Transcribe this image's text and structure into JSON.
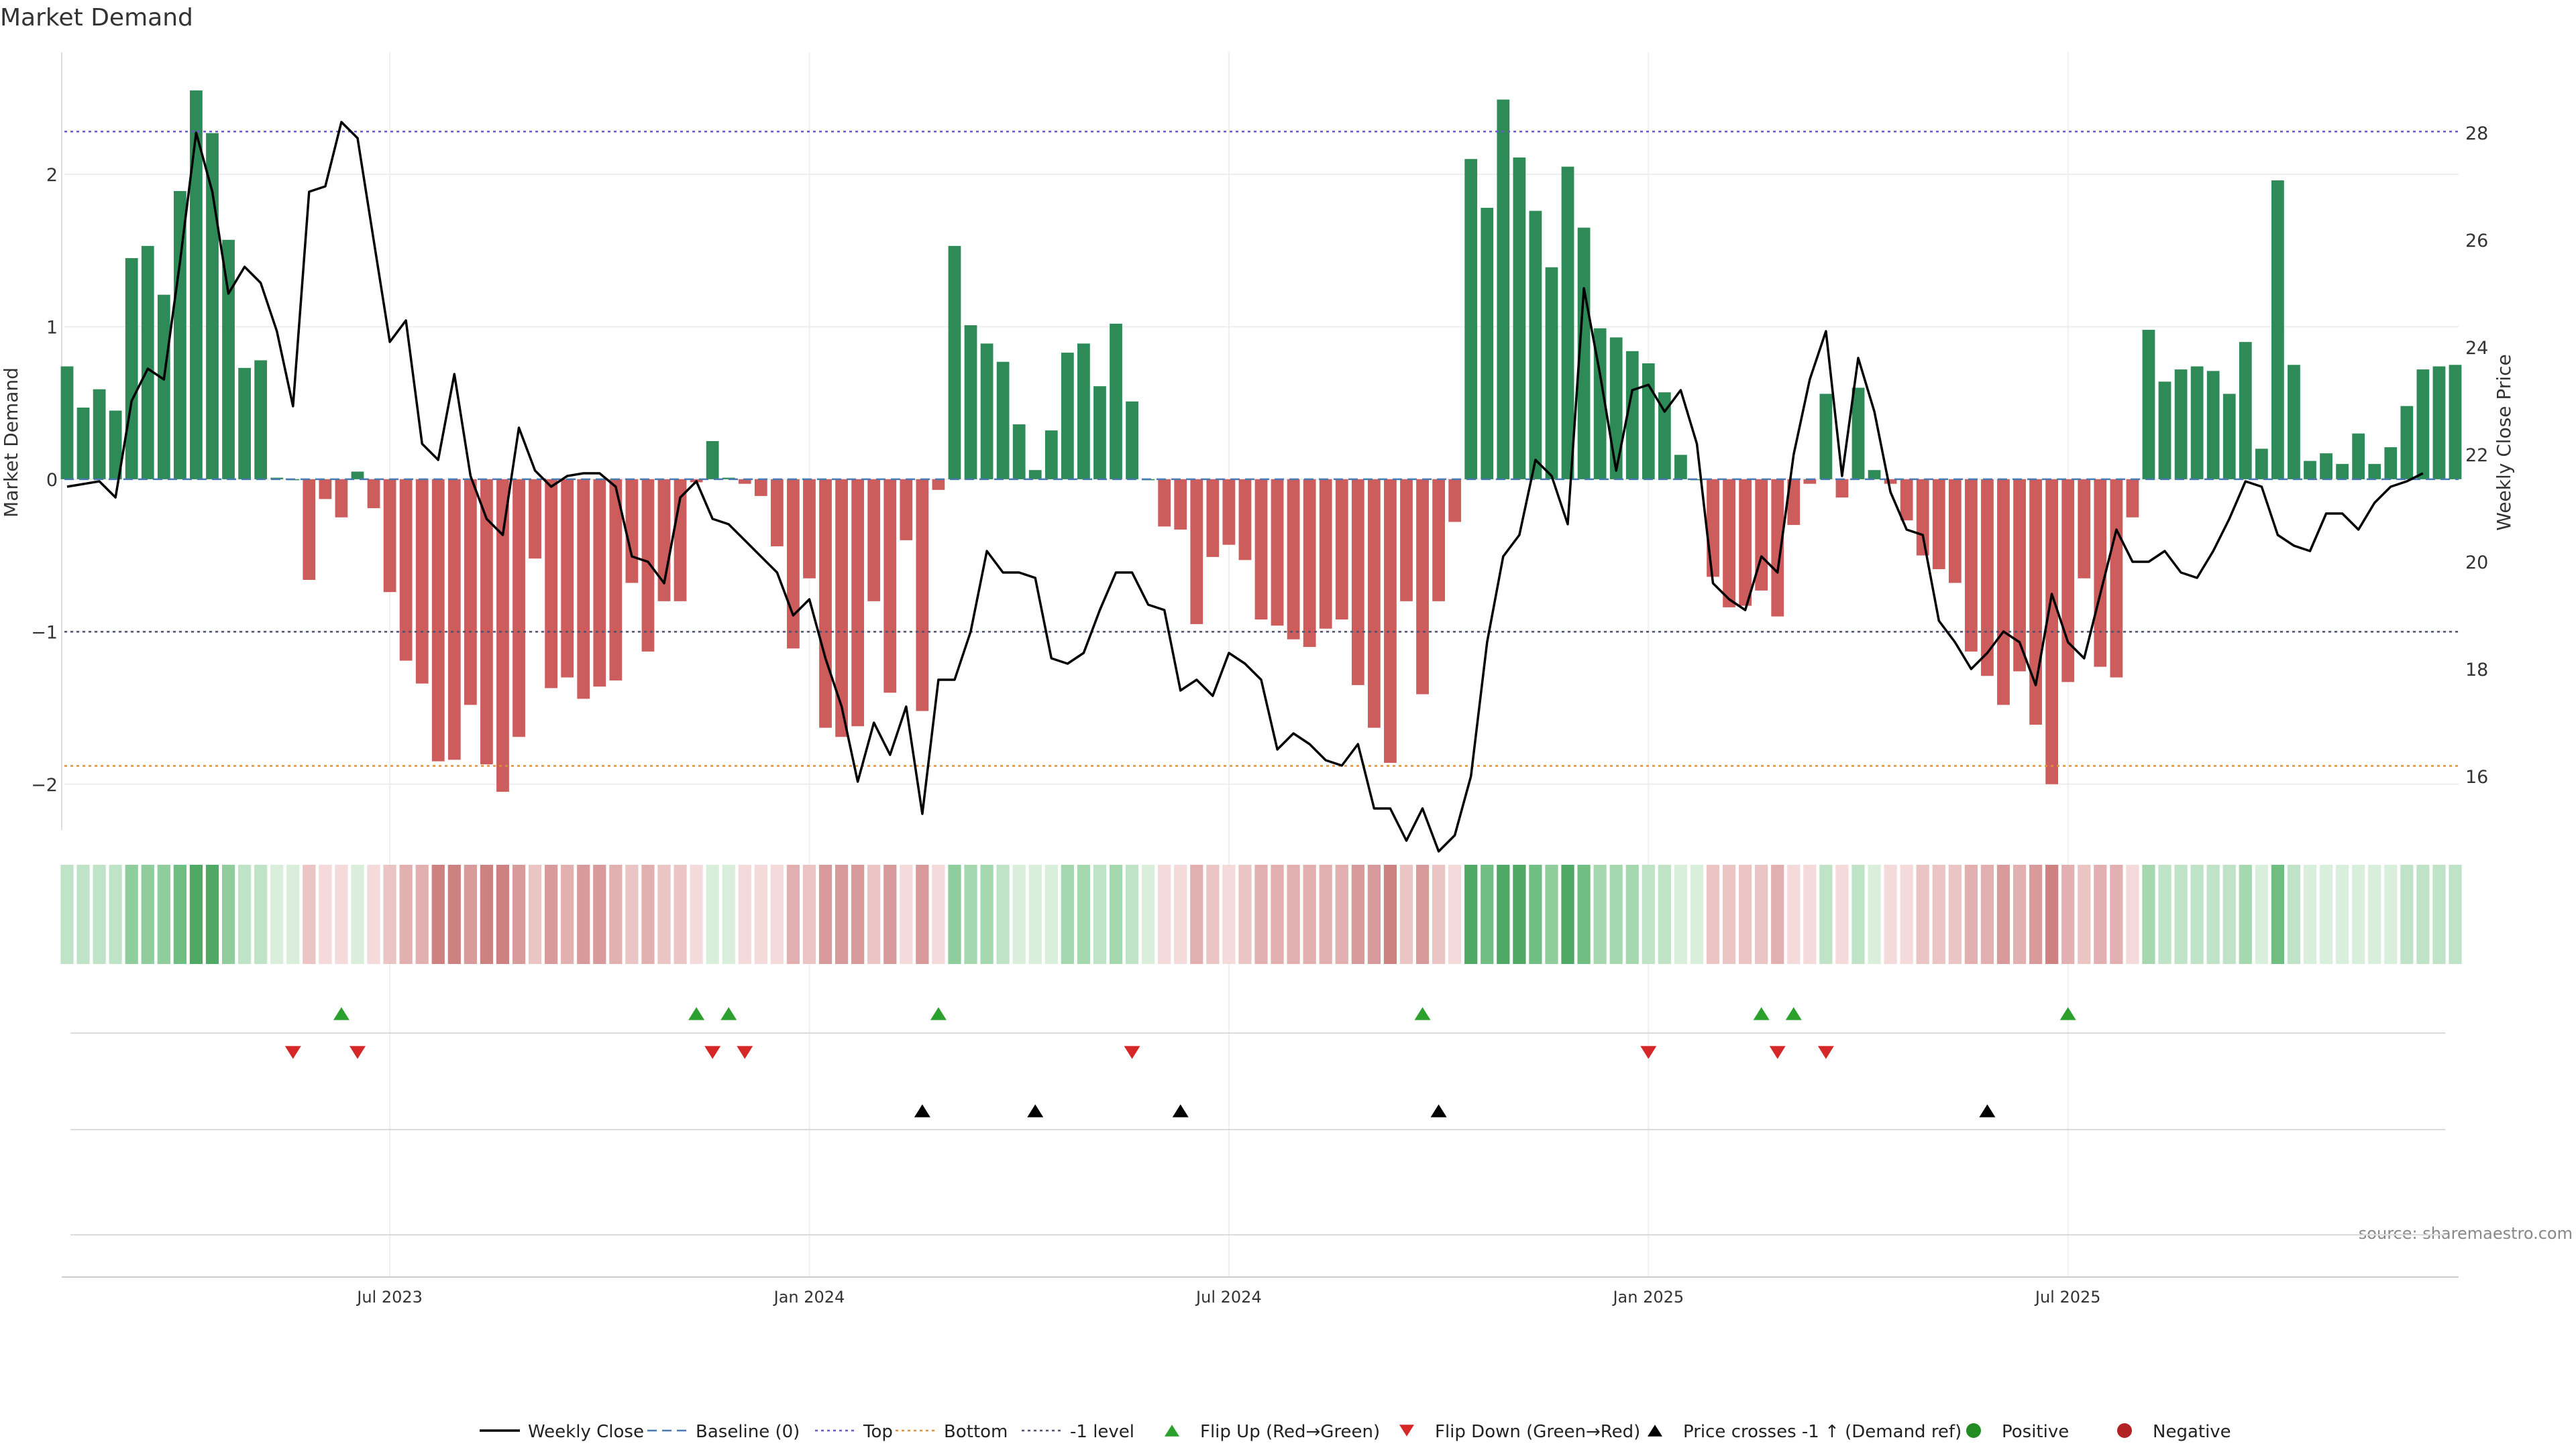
{
  "chart_data": {
    "type": "bar",
    "title": "Market Demand",
    "ylabel": "Market Demand",
    "y2label": "Weekly Close Price",
    "ylim": [
      -2.3,
      2.8
    ],
    "y2lim": [
      15.0,
      29.5
    ],
    "yticks": [
      {
        "v": 2,
        "label": "2"
      },
      {
        "v": 1,
        "label": "1"
      },
      {
        "v": 0,
        "label": "0"
      },
      {
        "v": -1,
        "label": "−1"
      },
      {
        "v": -2,
        "label": "−2"
      }
    ],
    "y2ticks": [
      {
        "v": 28,
        "label": "28"
      },
      {
        "v": 26,
        "label": "26"
      },
      {
        "v": 24,
        "label": "24"
      },
      {
        "v": 22,
        "label": "22"
      },
      {
        "v": 20,
        "label": "20"
      },
      {
        "v": 18,
        "label": "18"
      },
      {
        "v": 16,
        "label": "16"
      }
    ],
    "xticks": [
      {
        "week": 20,
        "label": "Jul 2023"
      },
      {
        "week": 46,
        "label": "Jan 2024"
      },
      {
        "week": 72,
        "label": "Jul 2024"
      },
      {
        "week": 98,
        "label": "Jan 2025"
      },
      {
        "week": 124,
        "label": "Jul 2025"
      }
    ],
    "reference_lines": [
      {
        "name": "Top",
        "value": 2.28,
        "color": "#6a5acd"
      },
      {
        "name": "Bottom",
        "value": -1.88,
        "color": "#e0923a"
      },
      {
        "name": "-1 level",
        "value": -1.0,
        "color": "#505070"
      }
    ],
    "demand": [
      0.74,
      0.47,
      0.59,
      0.45,
      1.45,
      1.53,
      1.21,
      1.89,
      2.55,
      2.27,
      1.57,
      0.73,
      0.78,
      0.01,
      0.0,
      -0.66,
      -0.13,
      -0.25,
      0.05,
      -0.19,
      -0.74,
      -1.19,
      -1.34,
      -1.85,
      -1.84,
      -1.48,
      -1.87,
      -2.05,
      -1.69,
      -0.52,
      -1.37,
      -1.3,
      -1.44,
      -1.36,
      -1.32,
      -0.68,
      -1.13,
      -0.8,
      -0.8,
      -0.02,
      0.25,
      0.01,
      -0.03,
      -0.11,
      -0.44,
      -1.11,
      -0.65,
      -1.63,
      -1.69,
      -1.62,
      -0.8,
      -1.4,
      -0.4,
      -1.52,
      -0.07,
      1.53,
      1.01,
      0.89,
      0.77,
      0.36,
      0.06,
      0.32,
      0.83,
      0.89,
      0.61,
      1.02,
      0.51,
      0.0,
      -0.31,
      -0.33,
      -0.95,
      -0.51,
      -0.43,
      -0.53,
      -0.92,
      -0.96,
      -1.05,
      -1.1,
      -0.98,
      -0.92,
      -1.35,
      -1.63,
      -1.86,
      -0.8,
      -1.41,
      -0.8,
      -0.28,
      2.1,
      1.78,
      2.49,
      2.11,
      1.76,
      1.39,
      2.05,
      1.65,
      0.99,
      0.93,
      0.84,
      0.76,
      0.57,
      0.16,
      0.0,
      -0.64,
      -0.84,
      -0.83,
      -0.73,
      -0.9,
      -0.3,
      -0.03,
      0.56,
      -0.12,
      0.6,
      0.06,
      -0.03,
      -0.27,
      -0.5,
      -0.59,
      -0.68,
      -1.13,
      -1.29,
      -1.48,
      -1.26,
      -1.61,
      -2.0,
      -1.33,
      -0.65,
      -1.23,
      -1.3,
      -0.25,
      0.98,
      0.64,
      0.72,
      0.74,
      0.71,
      0.56,
      0.9,
      0.2,
      1.96,
      0.75,
      0.12,
      0.17,
      0.1,
      0.3,
      0.1,
      0.21,
      0.48,
      0.72,
      0.74,
      0.75
    ],
    "weekly_close": [
      21.4,
      21.45,
      21.5,
      21.2,
      23.0,
      23.6,
      23.4,
      25.6,
      28.0,
      26.9,
      25.0,
      25.5,
      25.2,
      24.3,
      22.9,
      26.9,
      27.0,
      28.2,
      27.9,
      26.0,
      24.1,
      24.5,
      22.2,
      21.9,
      23.5,
      21.6,
      20.8,
      20.5,
      22.5,
      21.7,
      21.4,
      21.6,
      21.65,
      21.65,
      21.4,
      20.1,
      20.0,
      19.6,
      21.2,
      21.5,
      20.8,
      20.7,
      20.4,
      20.1,
      19.8,
      19.0,
      19.3,
      18.2,
      17.3,
      15.9,
      17.0,
      16.4,
      17.3,
      15.3,
      17.8,
      17.8,
      18.7,
      20.2,
      19.8,
      19.8,
      19.7,
      18.2,
      18.1,
      18.3,
      19.1,
      19.8,
      19.8,
      19.2,
      19.1,
      17.6,
      17.8,
      17.5,
      18.3,
      18.1,
      17.8,
      16.5,
      16.8,
      16.6,
      16.3,
      16.2,
      16.6,
      15.4,
      15.4,
      14.8,
      15.4,
      14.6,
      14.9,
      16.0,
      18.5,
      20.1,
      20.5,
      21.9,
      21.6,
      20.7,
      25.1,
      23.5,
      21.7,
      23.2,
      23.3,
      22.8,
      23.2,
      22.2,
      19.6,
      19.3,
      19.1,
      20.1,
      19.8,
      22.0,
      23.4,
      24.3,
      21.6,
      23.8,
      22.8,
      21.3,
      20.6,
      20.5,
      18.9,
      18.5,
      18.0,
      18.3,
      18.7,
      18.5,
      17.7,
      19.4,
      18.5,
      18.2,
      19.4,
      20.6,
      20.0,
      20.0,
      20.2,
      19.8,
      19.7,
      20.2,
      20.8,
      21.5,
      21.4,
      20.5,
      20.3,
      20.2,
      20.9,
      20.9,
      20.6,
      21.1,
      21.4,
      21.5,
      21.65
    ],
    "heat_colors": {
      "green": [
        "#d9efdc",
        "#bfe3c6",
        "#a6d8b0",
        "#8fcd9c",
        "#70bd81",
        "#4fa964"
      ],
      "red": [
        "#f4dada",
        "#ebc4c4",
        "#e2b0b0",
        "#d89a9a",
        "#cd8181"
      ]
    },
    "flip_up_weeks": [
      17,
      39,
      41,
      54,
      84,
      105,
      107,
      124
    ],
    "flip_down_weeks": [
      14,
      18,
      40,
      42,
      66,
      98,
      106,
      109
    ],
    "price_cross_weeks": [
      53,
      60,
      69,
      85,
      119
    ],
    "colors": {
      "green_bar": "#2e8b57",
      "red_bar": "#cd5c5c",
      "price_line": "#000000",
      "flip_up": "#2ca02c",
      "flip_down": "#d62728",
      "cross": "#000000",
      "baseline": "#4a78b0"
    },
    "source_text": "source: sharemaestro.com",
    "legend": [
      {
        "label": "Weekly Close",
        "marker": "line"
      },
      {
        "label": "Baseline (0)",
        "marker": "dashed-blue"
      },
      {
        "label": "Top",
        "marker": "dotted-purple"
      },
      {
        "label": "Bottom",
        "marker": "dotted-orange"
      },
      {
        "label": "-1 level",
        "marker": "dotted-gray"
      },
      {
        "label": "Flip Up (Red→Green)",
        "marker": "triangle-up-green"
      },
      {
        "label": "Flip Down (Green→Red)",
        "marker": "triangle-down-red"
      },
      {
        "label": "Price crosses -1 ↑ (Demand ref)",
        "marker": "triangle-up-black"
      },
      {
        "label": "Positive",
        "marker": "dot-green"
      },
      {
        "label": "Negative",
        "marker": "dot-red"
      }
    ]
  }
}
